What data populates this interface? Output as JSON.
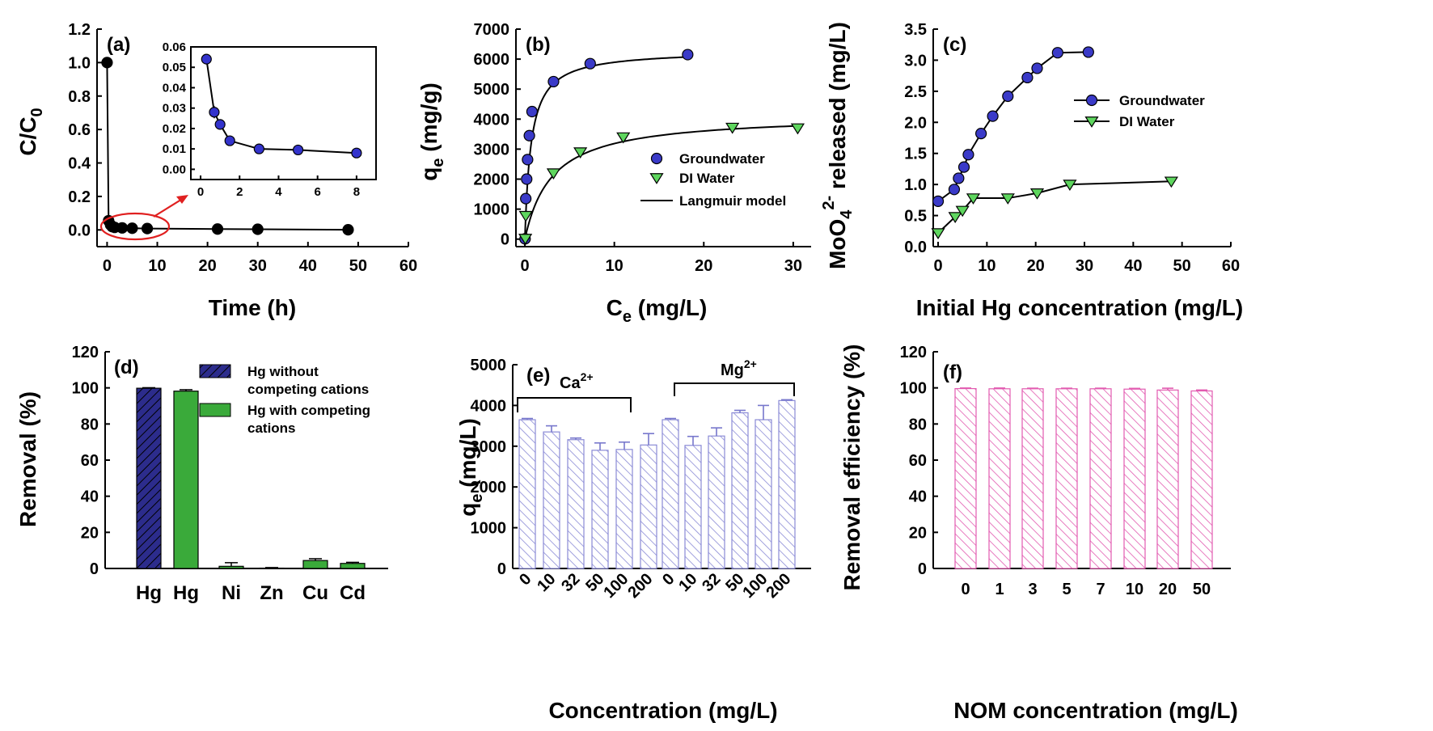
{
  "chart_data": [
    {
      "panel": "(a)",
      "type": "line",
      "xlabel": "Time (h)",
      "ylabel": "C/C0",
      "xlim": [
        -2,
        60
      ],
      "ylim": [
        -0.1,
        1.2
      ],
      "xticks": [
        0,
        10,
        20,
        30,
        40,
        50,
        60
      ],
      "yticks": [
        0.0,
        0.2,
        0.4,
        0.6,
        0.8,
        1.0,
        1.2
      ],
      "series": [
        {
          "color": "#000000",
          "x": [
            0,
            0.3,
            0.7,
            1,
            1.5,
            3,
            5,
            8,
            22,
            30,
            48
          ],
          "y": [
            1.0,
            0.055,
            0.03,
            0.02,
            0.015,
            0.012,
            0.01,
            0.008,
            0.005,
            0.004,
            0.001
          ]
        }
      ],
      "inset": {
        "xlim": [
          -0.5,
          9
        ],
        "ylim": [
          -0.005,
          0.06
        ],
        "xticks": [
          0,
          2,
          4,
          6,
          8
        ],
        "yticks": [
          0.0,
          0.01,
          0.02,
          0.03,
          0.04,
          0.05,
          0.06
        ],
        "ytick_labels": [
          "0.00",
          "0.01",
          "0.02",
          "0.03",
          "0.04",
          "0.05",
          "0.06"
        ],
        "color": "#3333cc",
        "x": [
          0.3,
          0.7,
          1,
          1.5,
          3,
          5,
          8
        ],
        "y": [
          0.054,
          0.028,
          0.022,
          0.014,
          0.01,
          0.0095,
          0.008
        ],
        "err": [
          0.002,
          0.003,
          0.001,
          0.001,
          0.0005,
          0.0005,
          0.0005
        ]
      }
    },
    {
      "panel": "(b)",
      "type": "scatter",
      "xlabel": "Ce (mg/L)",
      "ylabel": "qe (mg/g)",
      "xlim": [
        -1,
        32
      ],
      "ylim": [
        -250,
        7000
      ],
      "xticks": [
        0,
        10,
        20,
        30
      ],
      "yticks": [
        0,
        1000,
        2000,
        3000,
        4000,
        5000,
        6000,
        7000
      ],
      "series": [
        {
          "name": "Groundwater",
          "color": "#3a3ac8",
          "marker": "circle",
          "x": [
            0.02,
            0.1,
            0.2,
            0.3,
            0.5,
            0.8,
            3.2,
            7.3,
            18.2
          ],
          "y": [
            10,
            1350,
            2000,
            2650,
            3450,
            4250,
            5250,
            5850,
            6150
          ],
          "fit": {
            "qmax": 6300,
            "K": 1.45
          }
        },
        {
          "name": "DI Water",
          "color": "#5ed65e",
          "marker": "triangle",
          "x": [
            0.05,
            0.1,
            3.2,
            6.2,
            11,
            23.2,
            30.5
          ],
          "y": [
            20,
            780,
            2200,
            2900,
            3400,
            3720,
            3700
          ],
          "fit": {
            "qmax": 4150,
            "K": 0.33
          }
        }
      ],
      "legend": [
        "Groundwater",
        "DI Water",
        "Langmuir model"
      ],
      "legend_position": "right"
    },
    {
      "panel": "(c)",
      "type": "line",
      "xlabel": "Initial Hg concentration (mg/L)",
      "ylabel": "MoO4 2- released (mg/L)",
      "xlim": [
        -1,
        60
      ],
      "ylim": [
        0,
        3.5
      ],
      "xticks": [
        0,
        10,
        20,
        30,
        40,
        50,
        60
      ],
      "yticks": [
        0.0,
        0.5,
        1.0,
        1.5,
        2.0,
        2.5,
        3.0,
        3.5
      ],
      "series": [
        {
          "name": "Groundwater",
          "color": "#3a3ac8",
          "marker": "circle",
          "x": [
            0,
            3.3,
            4.2,
            5.3,
            6.2,
            8.8,
            11.2,
            14.3,
            18.3,
            20.3,
            24.5,
            30.8
          ],
          "y": [
            0.73,
            0.92,
            1.1,
            1.28,
            1.48,
            1.82,
            2.1,
            2.42,
            2.72,
            2.87,
            3.12,
            3.13
          ]
        },
        {
          "name": "DI Water",
          "color": "#5ed65e",
          "marker": "triangle",
          "x": [
            0,
            3.5,
            5.0,
            7.2,
            14.3,
            20.3,
            27.0,
            47.8
          ],
          "y": [
            0.22,
            0.48,
            0.58,
            0.78,
            0.78,
            0.86,
            1.0,
            1.05
          ]
        }
      ],
      "legend": [
        "Groundwater",
        "DI Water"
      ],
      "legend_position": "right"
    },
    {
      "panel": "(d)",
      "type": "bar",
      "ylabel": "Removal (%)",
      "ylim": [
        0,
        120
      ],
      "yticks": [
        0,
        20,
        40,
        60,
        80,
        100,
        120
      ],
      "categories": [
        "Hg",
        "Hg",
        "Ni",
        "Zn",
        "Cu",
        "Cd"
      ],
      "values": [
        99.8,
        98.2,
        1.2,
        0.2,
        4.4,
        2.8
      ],
      "errors": [
        0.3,
        0.8,
        2.0,
        0.3,
        1.0,
        0.6
      ],
      "colors": [
        "#2c2c8c",
        "#3aaa3a",
        "#3aaa3a",
        "#3aaa3a",
        "#3aaa3a",
        "#3aaa3a"
      ],
      "legend": [
        "Hg without competing cations",
        "Hg with competing cations"
      ],
      "legend_lines": [
        [
          "Hg without",
          "competing cations"
        ],
        [
          "Hg with competing",
          "cations"
        ]
      ]
    },
    {
      "panel": "(e)",
      "type": "bar",
      "xlabel": "Concentration (mg/L)",
      "ylabel": "qe (mg/L)",
      "ylim": [
        0,
        5000
      ],
      "yticks": [
        0,
        1000,
        2000,
        3000,
        4000,
        5000
      ],
      "categories": [
        "0",
        "10",
        "32",
        "50",
        "100",
        "200",
        "0",
        "10",
        "32",
        "50",
        "100",
        "200"
      ],
      "groups": [
        "Ca2+",
        "Mg2+"
      ],
      "values": [
        3650,
        3350,
        3160,
        2900,
        2920,
        3030,
        3650,
        3020,
        3250,
        3820,
        3650,
        4120
      ],
      "errors": [
        30,
        150,
        40,
        180,
        180,
        280,
        30,
        220,
        200,
        60,
        350,
        20
      ],
      "color": "#7777cc"
    },
    {
      "panel": "(f)",
      "type": "bar",
      "xlabel": "NOM concentration (mg/L)",
      "ylabel": "Removal efficiency (%)",
      "ylim": [
        0,
        120
      ],
      "yticks": [
        0,
        20,
        40,
        60,
        80,
        100,
        120
      ],
      "categories": [
        "0",
        "1",
        "3",
        "5",
        "7",
        "10",
        "20",
        "50"
      ],
      "values": [
        99.6,
        99.5,
        99.5,
        99.5,
        99.5,
        99.3,
        98.8,
        98.3
      ],
      "errors": [
        0.3,
        0.4,
        0.3,
        0.3,
        0.3,
        0.4,
        1.0,
        0.5
      ],
      "color": "#e25bb0"
    }
  ]
}
